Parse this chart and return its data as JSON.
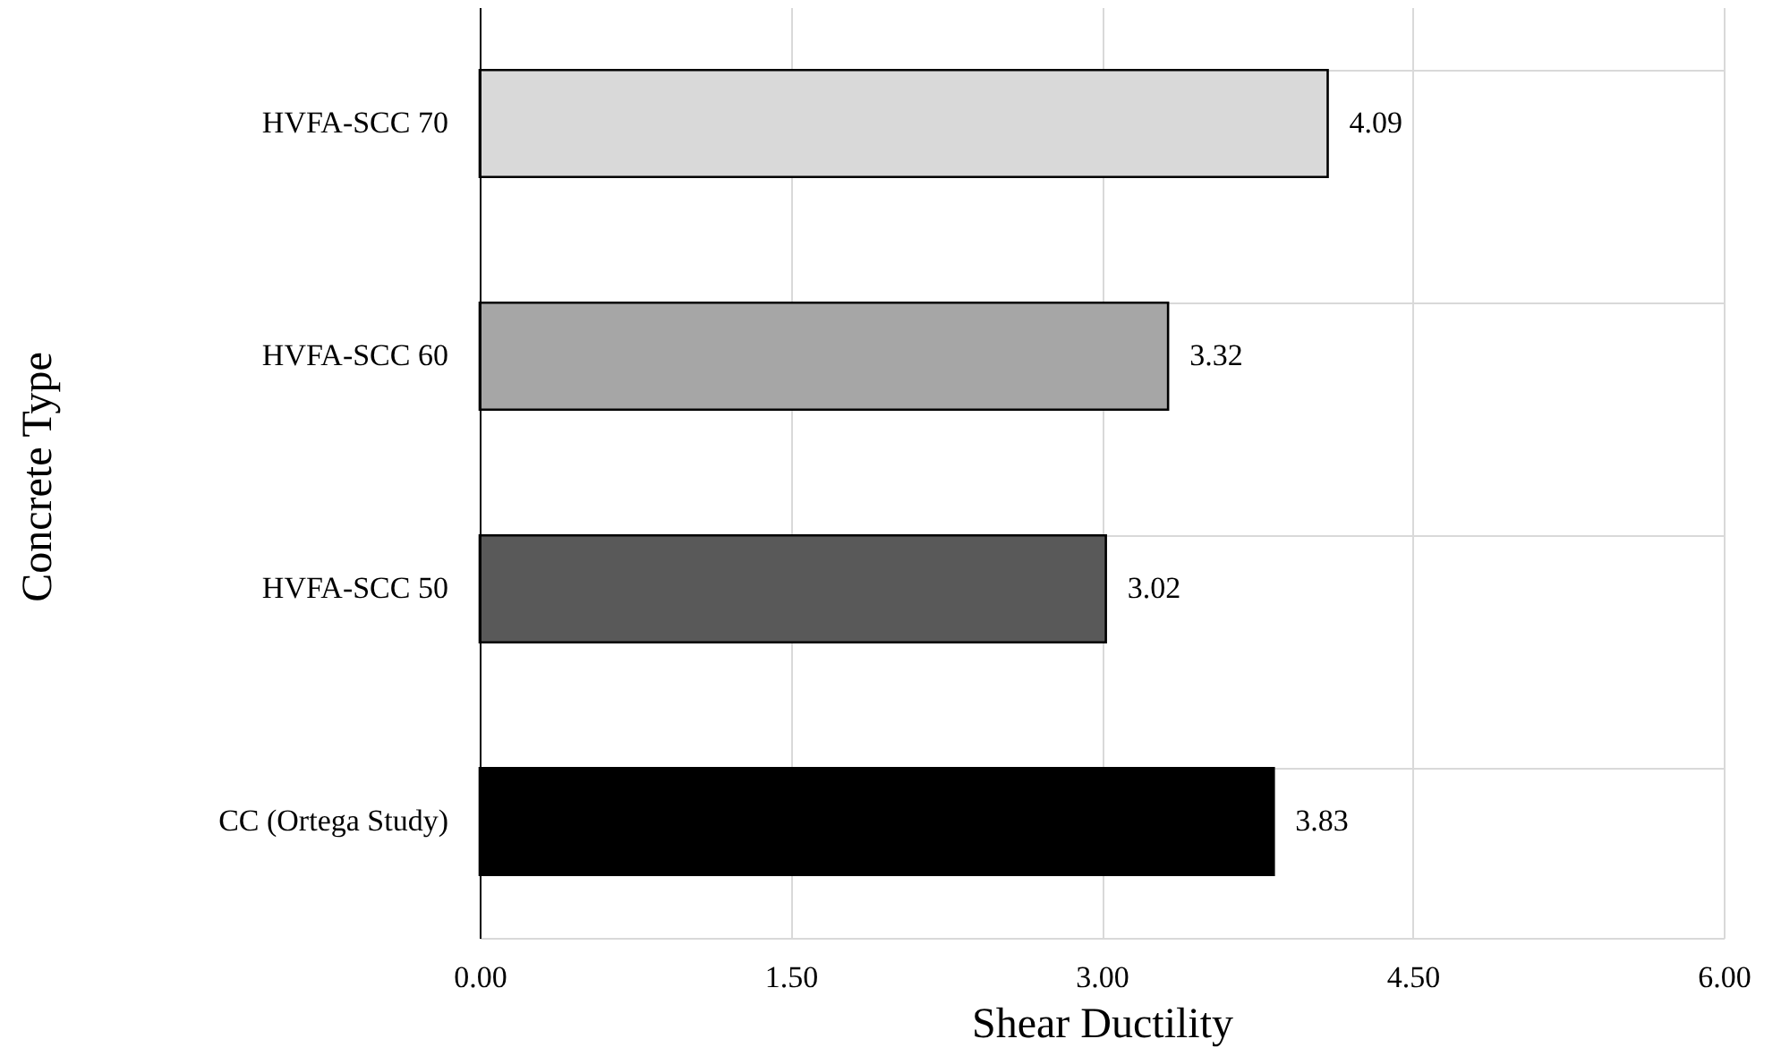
{
  "chart_data": {
    "type": "bar",
    "orientation": "horizontal",
    "xlabel": "Shear Ductility",
    "ylabel": "Concrete Type",
    "categories": [
      "HVFA-SCC 70",
      "HVFA-SCC 60",
      "HVFA-SCC 50",
      "CC (Ortega Study)"
    ],
    "values": [
      4.09,
      3.32,
      3.02,
      3.83
    ],
    "colors": [
      "#d9d9d9",
      "#a6a6a6",
      "#595959",
      "#000000"
    ],
    "xlim": [
      0,
      6
    ],
    "xticks": [
      {
        "value": 0,
        "label": "0.00"
      },
      {
        "value": 1.5,
        "label": "1.50"
      },
      {
        "value": 3,
        "label": "3.00"
      },
      {
        "value": 4.5,
        "label": "4.50"
      },
      {
        "value": 6,
        "label": "6.00"
      }
    ],
    "grid": true,
    "data_labels": true
  }
}
